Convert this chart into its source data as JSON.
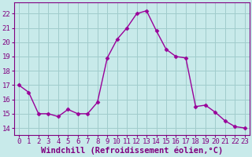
{
  "x": [
    0,
    1,
    2,
    3,
    4,
    5,
    6,
    7,
    8,
    9,
    10,
    11,
    12,
    13,
    14,
    15,
    16,
    17,
    18,
    19,
    20,
    21,
    22,
    23
  ],
  "y": [
    17.0,
    16.5,
    15.0,
    15.0,
    14.8,
    15.3,
    15.0,
    15.0,
    15.8,
    18.9,
    20.2,
    21.0,
    22.0,
    22.2,
    20.8,
    19.5,
    19.0,
    18.9,
    15.5,
    15.6,
    15.1,
    14.5,
    14.1,
    14.0
  ],
  "line_color": "#990099",
  "marker": "D",
  "marker_size": 2.5,
  "line_width": 1.0,
  "bg_color": "#c8eaea",
  "grid_color": "#a0cccc",
  "xlabel": "Windchill (Refroidissement éolien,°C)",
  "xlabel_fontsize": 7.5,
  "tick_fontsize": 6.5,
  "ylim": [
    13.5,
    22.8
  ],
  "yticks": [
    14,
    15,
    16,
    17,
    18,
    19,
    20,
    21,
    22
  ],
  "xticks": [
    0,
    1,
    2,
    3,
    4,
    5,
    6,
    7,
    8,
    9,
    10,
    11,
    12,
    13,
    14,
    15,
    16,
    17,
    18,
    19,
    20,
    21,
    22,
    23
  ],
  "spine_color": "#800080",
  "axis_bottom_color": "#800080"
}
